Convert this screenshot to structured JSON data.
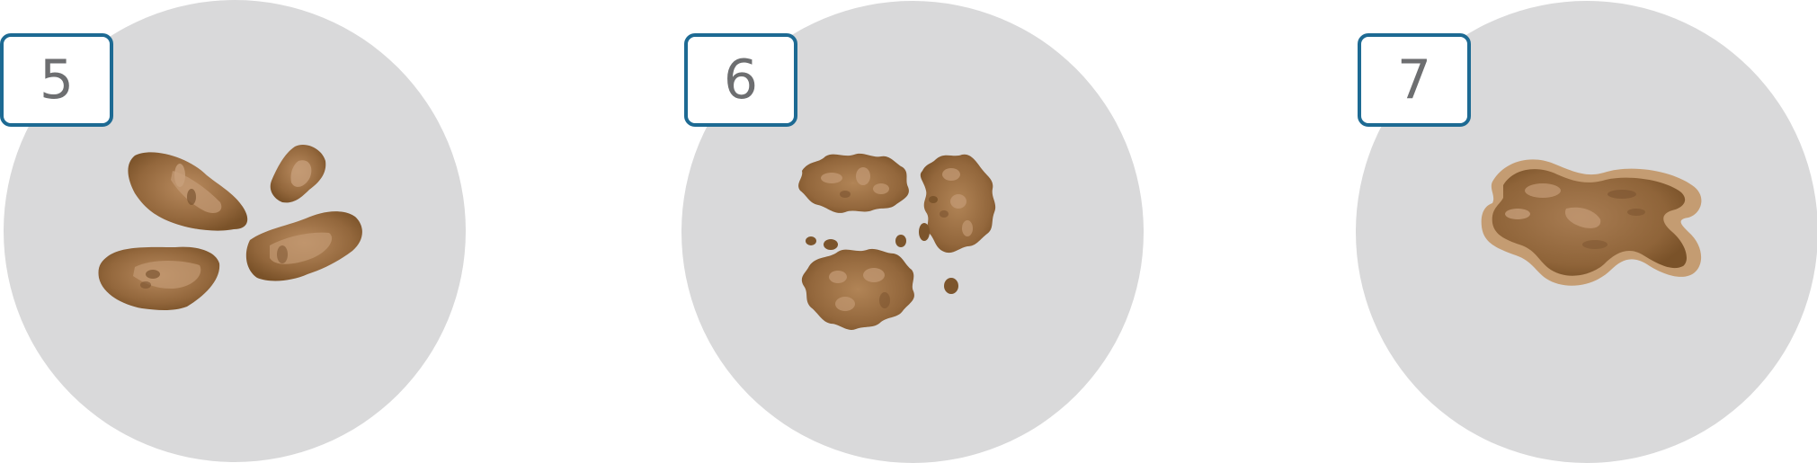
{
  "panels": [
    {
      "number": "5",
      "illustration": "soft-blobs-separate"
    },
    {
      "number": "6",
      "illustration": "fluffy-mushy-pieces"
    },
    {
      "number": "7",
      "illustration": "watery-puddle"
    }
  ],
  "colors": {
    "circle": "#d9d9da",
    "badge_border": "#1d6a93",
    "badge_text": "#6d6e70",
    "stool_dark": "#7c552c",
    "stool_mid": "#9a6e42",
    "stool_light": "#c79c77",
    "puddle_rim": "#c49c72"
  }
}
